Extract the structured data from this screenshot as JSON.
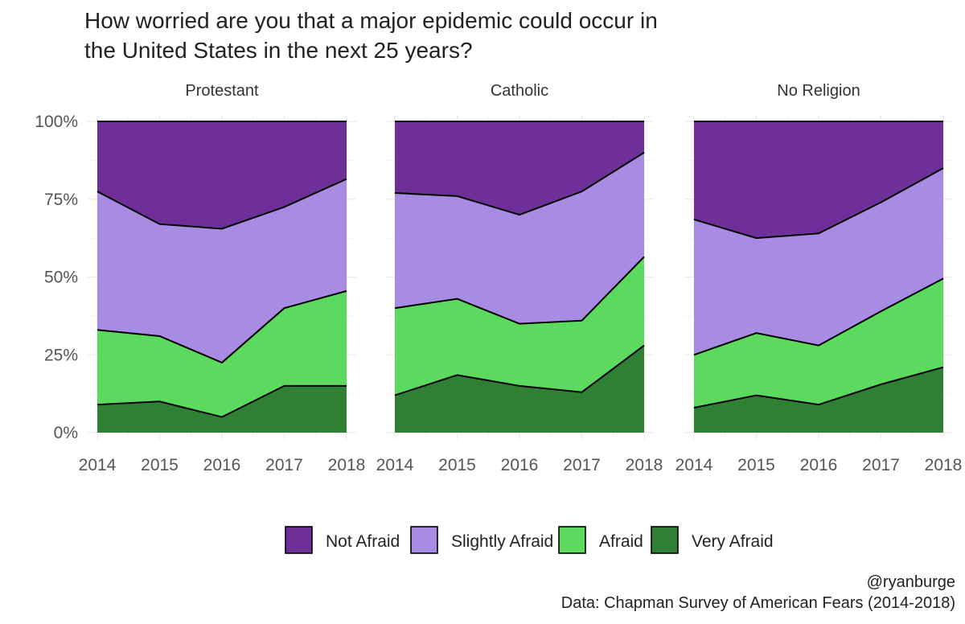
{
  "title": "How worried are you that a major epidemic could occur in the United States in the next 25 years?",
  "caption_handle": "@ryanburge",
  "caption_source": "Data: Chapman Survey of American Fears (2014-2018)",
  "colors": {
    "Not Afraid": "#6f2f99",
    "Slightly Afraid": "#a88be3",
    "Afraid": "#5cd95f",
    "Very Afraid": "#2f7f35",
    "grid": "#ebebeb",
    "axis_text": "#555555"
  },
  "chart_data": {
    "type": "area",
    "stacked": true,
    "x": [
      2014,
      2015,
      2016,
      2017,
      2018
    ],
    "ylim": [
      0,
      1
    ],
    "y_ticks": [
      0,
      0.25,
      0.5,
      0.75,
      1
    ],
    "y_tick_labels": [
      "0%",
      "25%",
      "50%",
      "75%",
      "100%"
    ],
    "x_tick_labels": [
      "2014",
      "2015",
      "2016",
      "2017",
      "2018"
    ],
    "grid": true,
    "legend_position": "bottom",
    "legend": [
      "Not Afraid",
      "Slightly Afraid",
      "Afraid",
      "Very Afraid"
    ],
    "panels": [
      {
        "label": "Protestant",
        "series": [
          {
            "name": "Not Afraid",
            "values": [
              0.225,
              0.33,
              0.345,
              0.275,
              0.185
            ]
          },
          {
            "name": "Slightly Afraid",
            "values": [
              0.445,
              0.36,
              0.43,
              0.325,
              0.36
            ]
          },
          {
            "name": "Afraid",
            "values": [
              0.24,
              0.21,
              0.175,
              0.25,
              0.305
            ]
          },
          {
            "name": "Very Afraid",
            "values": [
              0.09,
              0.1,
              0.05,
              0.15,
              0.15
            ]
          }
        ]
      },
      {
        "label": "Catholic",
        "series": [
          {
            "name": "Not Afraid",
            "values": [
              0.23,
              0.24,
              0.3,
              0.225,
              0.1
            ]
          },
          {
            "name": "Slightly Afraid",
            "values": [
              0.37,
              0.33,
              0.35,
              0.415,
              0.335
            ]
          },
          {
            "name": "Afraid",
            "values": [
              0.28,
              0.245,
              0.2,
              0.23,
              0.285
            ]
          },
          {
            "name": "Very Afraid",
            "values": [
              0.12,
              0.185,
              0.15,
              0.13,
              0.28
            ]
          }
        ]
      },
      {
        "label": "No Religion",
        "series": [
          {
            "name": "Not Afraid",
            "values": [
              0.315,
              0.375,
              0.36,
              0.26,
              0.15
            ]
          },
          {
            "name": "Slightly Afraid",
            "values": [
              0.435,
              0.305,
              0.36,
              0.35,
              0.355
            ]
          },
          {
            "name": "Afraid",
            "values": [
              0.17,
              0.2,
              0.19,
              0.235,
              0.285
            ]
          },
          {
            "name": "Very Afraid",
            "values": [
              0.08,
              0.12,
              0.09,
              0.155,
              0.21
            ]
          }
        ]
      }
    ]
  }
}
